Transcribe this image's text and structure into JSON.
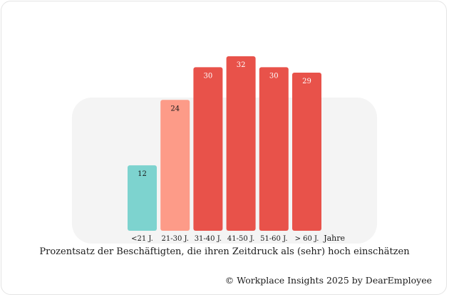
{
  "chart_data": {
    "type": "bar",
    "categories": [
      "<21 J.",
      "21-30 J.",
      "31-40 J.",
      "41-50 J.",
      "51-60 J.",
      "> 60 J."
    ],
    "values": [
      12,
      24,
      30,
      32,
      30,
      29
    ],
    "colors": [
      "#7dd3cf",
      "#fd9b88",
      "#e8524a",
      "#e8524a",
      "#e8524a",
      "#e8524a"
    ],
    "label_colors": [
      "#1a1a1a",
      "#1a1a1a",
      "#ffffff",
      "#ffffff",
      "#ffffff",
      "#ffffff"
    ],
    "xlabel": "Jahre",
    "caption": "Prozentsatz der Beschäftigten, die ihren Zeitdruck als (sehr) hoch einschätzen",
    "ylim": [
      0,
      32
    ],
    "grid": false
  },
  "footer": {
    "copyright": "© Workplace Insights 2025 by DearEmployee"
  }
}
